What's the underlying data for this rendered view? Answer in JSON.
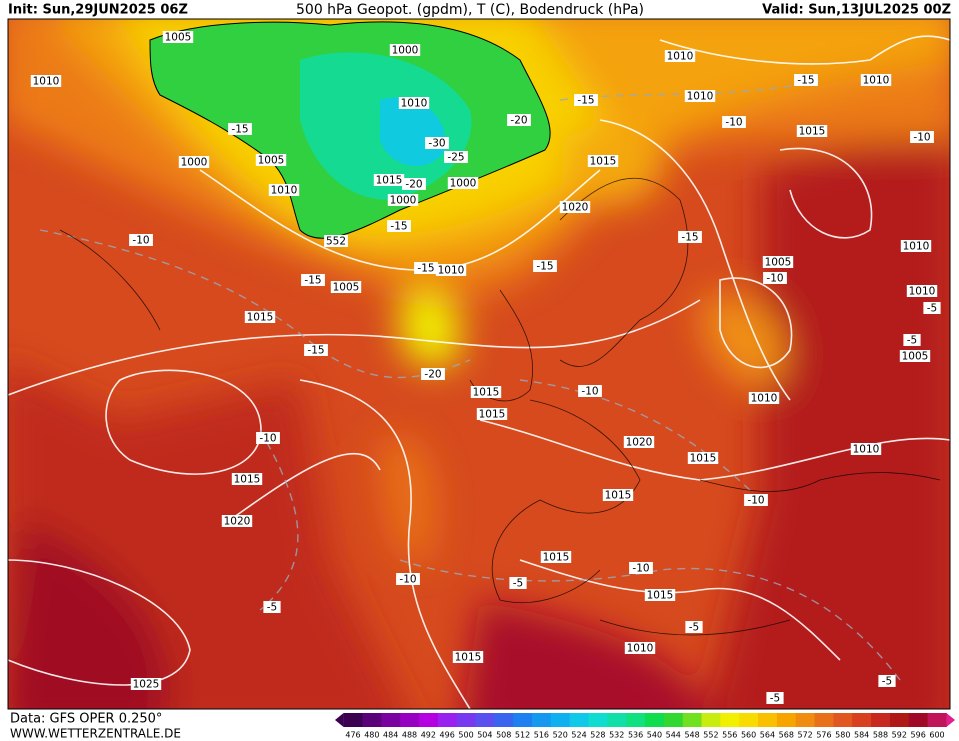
{
  "header": {
    "init": "Init: Sun,29JUN2025 06Z",
    "title": "500 hPa Geopot. (gpdm), T (C), Bodendruck (hPa)",
    "valid": "Valid: Sun,13JUL2025 00Z"
  },
  "footer": {
    "data": "Data: GFS OPER 0.250°",
    "site": "WWW.WETTERZENTRALE.DE"
  },
  "map": {
    "pressure_labels": [
      "1005",
      "1000",
      "1010",
      "1010",
      "1010",
      "1010",
      "1010",
      "1015",
      "1000",
      "1005",
      "1015",
      "1010",
      "1015",
      "1000",
      "1000",
      "1020",
      "1010",
      "1005",
      "1010",
      "1005",
      "1010",
      "1015",
      "1005",
      "1015",
      "1015",
      "1010",
      "1020",
      "1010",
      "1015",
      "1015",
      "1015",
      "1020",
      "1015",
      "1015",
      "1010",
      "1015",
      "1025"
    ],
    "temperature_labels": [
      "-15",
      "-15",
      "-10",
      "-15",
      "-10",
      "-20",
      "-30",
      "-25",
      "-20",
      "-15",
      "-15",
      "-15",
      "-10",
      "-15",
      "-10",
      "-15",
      "-15",
      "-20",
      "-5",
      "-5",
      "-10",
      "-10",
      "-10",
      "-10",
      "-5",
      "-10",
      "-5",
      "-5",
      "-5",
      "-5"
    ],
    "geopotential_labels": [
      "552"
    ]
  },
  "colorbar": {
    "ticks": [
      476,
      480,
      484,
      488,
      492,
      496,
      500,
      504,
      508,
      512,
      516,
      520,
      524,
      528,
      532,
      536,
      540,
      544,
      548,
      552,
      556,
      560,
      564,
      568,
      572,
      576,
      580,
      584,
      588,
      592,
      596,
      600
    ],
    "colors": [
      "#3c0050",
      "#5a0078",
      "#7a00a0",
      "#9600c0",
      "#b400e0",
      "#9a20f0",
      "#7838f0",
      "#5a50f0",
      "#3a64f0",
      "#1e80f0",
      "#1498f0",
      "#10b0f0",
      "#10c8e8",
      "#10dcd0",
      "#10e0a8",
      "#10e080",
      "#10dc50",
      "#30d830",
      "#70e020",
      "#c8ec10",
      "#f0f000",
      "#f8dc00",
      "#f8c000",
      "#f8a400",
      "#f08c10",
      "#e87018",
      "#e05820",
      "#d84020",
      "#c82820",
      "#b01818",
      "#a00828",
      "#c0145a"
    ]
  }
}
